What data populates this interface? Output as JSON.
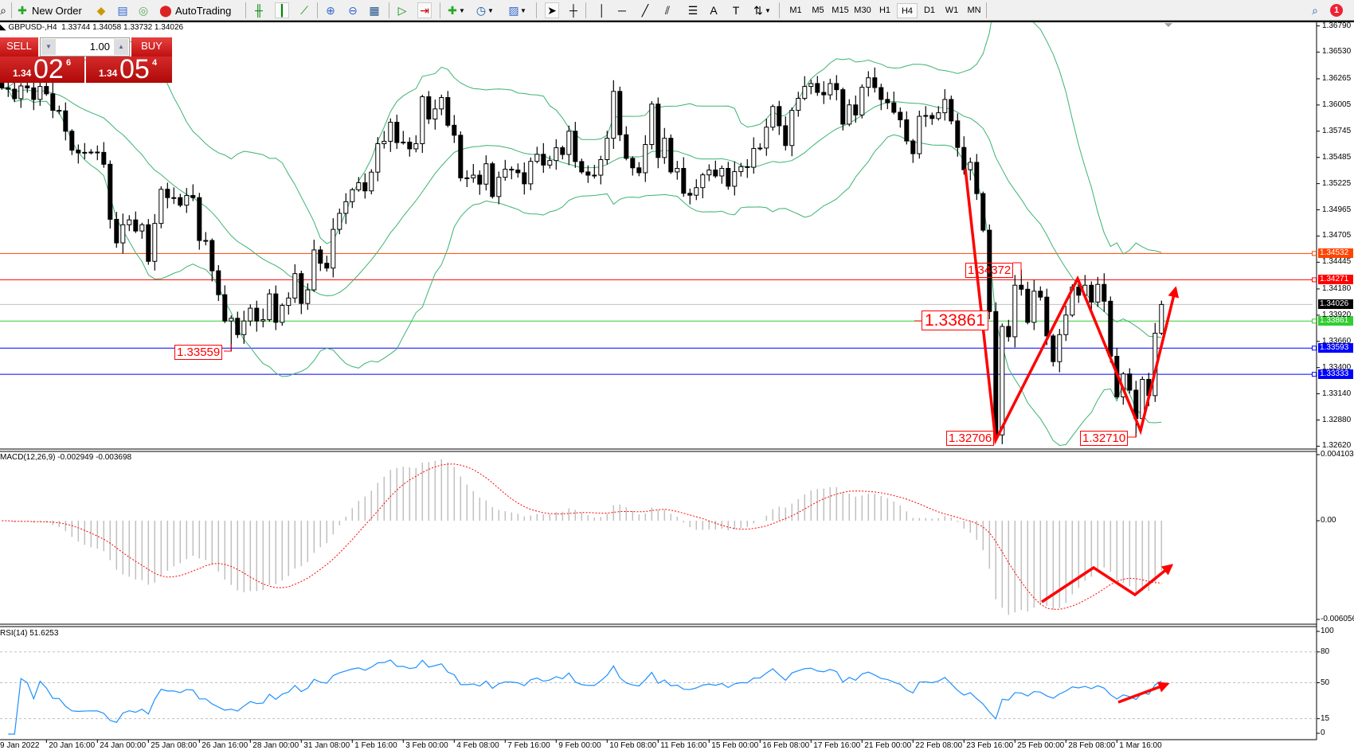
{
  "toolbar": {
    "new_order": "New Order",
    "autotrading": "AutoTrading",
    "timeframes": [
      "M1",
      "M5",
      "M15",
      "M30",
      "H1",
      "H4",
      "D1",
      "W1",
      "MN"
    ],
    "active_timeframe": "H4",
    "notification_count": "1"
  },
  "header": {
    "symbol": "GBPUSD-,H4",
    "ohlc": "1.33744 1.34058 1.33732 1.34026"
  },
  "trade_panel": {
    "sell_label": "SELL",
    "buy_label": "BUY",
    "lot": "1.00",
    "sell_price": {
      "small": "1.34",
      "big": "02",
      "sup": "6"
    },
    "buy_price": {
      "small": "1.34",
      "big": "05",
      "sup": "4"
    }
  },
  "price_axis": [
    "1.36790",
    "1.36530",
    "1.36265",
    "1.36005",
    "1.35745",
    "1.35485",
    "1.35225",
    "1.34965",
    "1.34705",
    "1.34445",
    "1.34180",
    "1.33920",
    "1.33660",
    "1.33400",
    "1.33140",
    "1.32880",
    "1.32620"
  ],
  "hlines": [
    {
      "label": "1.34532",
      "value": 1.34532,
      "color": "#ff4500"
    },
    {
      "label": "1.34271",
      "value": 1.34271,
      "color": "#ff0000"
    },
    {
      "label": "1.34026",
      "value": 1.34026,
      "color": "#000000",
      "line_color": "#c0c0c0"
    },
    {
      "label": "1.33861",
      "value": 1.33861,
      "color": "#32cd32"
    },
    {
      "label": "1.33593",
      "value": 1.33593,
      "color": "#0000ff"
    },
    {
      "label": "1.33333",
      "value": 1.33333,
      "color": "#0000ff"
    }
  ],
  "annotations": {
    "low_left": "1.33559",
    "high_mid": "1.34372",
    "level": "1.33861",
    "low_1": "1.32706",
    "low_2": "1.32710"
  },
  "macd": {
    "header": "MACD(12,26,9) -0.002949 -0.003698",
    "axis": [
      "0.004103",
      "0.00",
      "-0.006056"
    ],
    "range": [
      -0.006056,
      0.004103
    ]
  },
  "rsi": {
    "header": "RSI(14) 51.6253",
    "axis": [
      "100",
      "80",
      "50",
      "15",
      "0"
    ],
    "levels": [
      80,
      50,
      15
    ]
  },
  "time_axis": [
    "9 Jan 2022",
    "20 Jan 16:00",
    "24 Jan 00:00",
    "25 Jan 08:00",
    "26 Jan 16:00",
    "28 Jan 00:00",
    "31 Jan 08:00",
    "1 Feb 16:00",
    "3 Feb 00:00",
    "4 Feb 08:00",
    "7 Feb 16:00",
    "9 Feb 00:00",
    "10 Feb 08:00",
    "11 Feb 16:00",
    "15 Feb 00:00",
    "16 Feb 08:00",
    "17 Feb 16:00",
    "21 Feb 00:00",
    "22 Feb 08:00",
    "23 Feb 16:00",
    "25 Feb 00:00",
    "28 Feb 08:00",
    "1 Mar 16:00"
  ],
  "colors": {
    "bands": "#3cb371",
    "macd_hist": "#c0c0c0",
    "macd_signal": "#ff0000",
    "rsi": "#1e90ff",
    "annotation": "#ff0000"
  },
  "chart_data": {
    "type": "candlestick",
    "symbol": "GBPUSD",
    "timeframe": "H4",
    "indicators": [
      "Bollinger Bands(20,2)",
      "MACD(12,26,9)",
      "RSI(14)"
    ],
    "ylim": [
      1.3262,
      1.3679
    ],
    "closes": [
      1.36175,
      1.36162,
      1.36068,
      1.36194,
      1.36175,
      1.3606,
      1.36189,
      1.36116,
      1.35952,
      1.35947,
      1.35745,
      1.35557,
      1.3553,
      1.35535,
      1.35538,
      1.35535,
      1.35417,
      1.34871,
      1.34637,
      1.34817,
      1.34865,
      1.34755,
      1.34817,
      1.34454,
      1.3483,
      1.35169,
      1.35086,
      1.35086,
      1.35011,
      1.35107,
      1.35086,
      1.34661,
      1.34661,
      1.3436,
      1.34123,
      1.33862,
      1.33889,
      1.33727,
      1.33862,
      1.33989,
      1.33862,
      1.33875,
      1.34131,
      1.33849,
      1.34017,
      1.3409,
      1.34332,
      1.34036,
      1.34171,
      1.34567,
      1.34435,
      1.34387,
      1.34771,
      1.3493,
      1.35046,
      1.35164,
      1.35234,
      1.35153,
      1.35339,
      1.35621,
      1.35645,
      1.35834,
      1.35632,
      1.35637,
      1.3557,
      1.35621,
      1.36087,
      1.35866,
      1.35966,
      1.36079,
      1.35804,
      1.35705,
      1.35282,
      1.35282,
      1.35309,
      1.3522,
      1.35422,
      1.35097,
      1.35288,
      1.35368,
      1.3536,
      1.35333,
      1.35223,
      1.35446,
      1.35516,
      1.35409,
      1.35454,
      1.35581,
      1.35514,
      1.35745,
      1.35444,
      1.35341,
      1.35309,
      1.35309,
      1.35463,
      1.35675,
      1.3614,
      1.3571,
      1.35476,
      1.35382,
      1.35333,
      1.35613,
      1.36014,
      1.35484,
      1.35675,
      1.35341,
      1.35376,
      1.35129,
      1.3511,
      1.35185,
      1.35312,
      1.3536,
      1.35301,
      1.35376,
      1.35199,
      1.35344,
      1.35393,
      1.35387,
      1.35573,
      1.35578,
      1.35785,
      1.3599,
      1.35799,
      1.35603,
      1.35952,
      1.36071,
      1.36189,
      1.36218,
      1.3613,
      1.36106,
      1.36218,
      1.36157,
      1.35815,
      1.36006,
      1.35906,
      1.36181,
      1.36275,
      1.36178,
      1.3606,
      1.36027,
      1.35933,
      1.35858,
      1.35648,
      1.35522,
      1.35893,
      1.35901,
      1.35871,
      1.35928,
      1.3606,
      1.35847,
      1.35584,
      1.35363,
      1.35436,
      1.35126,
      1.34763,
      1.33956,
      1.32732,
      1.33808,
      1.33706,
      1.34217,
      1.34177,
      1.33849,
      1.34158,
      1.34099,
      1.33714,
      1.33459,
      1.33727,
      1.33921,
      1.34198,
      1.34118,
      1.34217,
      1.3405,
      1.34225,
      1.34058,
      1.33512,
      1.33109,
      1.33337,
      1.33176,
      1.32894,
      1.33283,
      1.33122,
      1.33741,
      1.34026
    ],
    "marked_extremes": [
      {
        "label": "1.33559",
        "kind": "low",
        "value": 1.33559
      },
      {
        "label": "1.34372",
        "kind": "high",
        "value": 1.34372
      },
      {
        "label": "1.32706",
        "kind": "low",
        "value": 1.32706
      },
      {
        "label": "1.32710",
        "kind": "low",
        "value": 1.3271
      }
    ]
  }
}
